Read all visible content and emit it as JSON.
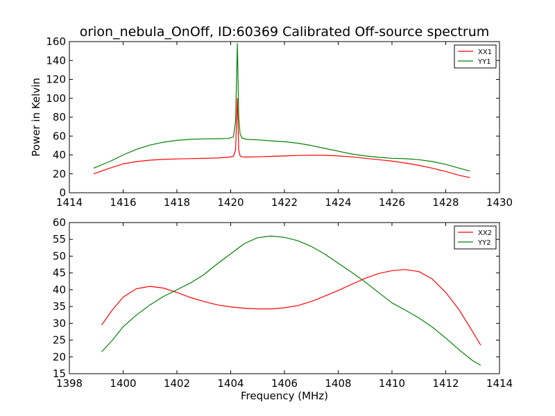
{
  "chart_data": [
    {
      "type": "line",
      "title": "orion_nebula_OnOff, ID:60369 Calibrated Off-source spectrum",
      "xlabel": "",
      "ylabel": "Power in Kelvin",
      "xlim": [
        1414,
        1430
      ],
      "ylim": [
        0,
        160
      ],
      "xticks": [
        1414,
        1416,
        1418,
        1420,
        1422,
        1424,
        1426,
        1428,
        1430
      ],
      "yticks": [
        0,
        20,
        40,
        60,
        80,
        100,
        120,
        140,
        160
      ],
      "grid": false,
      "legend_position": "top-right",
      "series": [
        {
          "name": "XX1",
          "color": "#ff0000",
          "x": [
            1414.9,
            1415.5,
            1416.0,
            1416.5,
            1417.0,
            1417.5,
            1418.0,
            1418.5,
            1419.0,
            1419.5,
            1419.9,
            1420.1,
            1420.18,
            1420.25,
            1420.3,
            1420.35,
            1420.42,
            1420.6,
            1421.0,
            1421.5,
            1422.0,
            1422.5,
            1423.0,
            1423.5,
            1424.0,
            1424.5,
            1425.0,
            1425.5,
            1426.0,
            1426.5,
            1427.0,
            1427.5,
            1428.0,
            1428.5,
            1428.9
          ],
          "y": [
            20,
            26,
            30.5,
            33,
            34.5,
            35.3,
            35.8,
            36.1,
            36.4,
            36.8,
            37.5,
            38.5,
            45,
            100,
            45,
            39,
            38,
            37.8,
            38,
            38.5,
            39,
            39.5,
            39.7,
            39.6,
            39,
            38,
            36.5,
            35,
            33.5,
            31.5,
            29,
            26,
            22.5,
            18.5,
            16
          ]
        },
        {
          "name": "YY1",
          "color": "#008000",
          "x": [
            1414.9,
            1415.5,
            1416.0,
            1416.5,
            1417.0,
            1417.5,
            1418.0,
            1418.5,
            1419.0,
            1419.5,
            1419.9,
            1420.1,
            1420.18,
            1420.25,
            1420.3,
            1420.35,
            1420.42,
            1420.6,
            1421.0,
            1421.5,
            1422.0,
            1422.5,
            1423.0,
            1423.5,
            1424.0,
            1424.5,
            1425.0,
            1425.5,
            1426.0,
            1426.5,
            1427.0,
            1427.5,
            1428.0,
            1428.5,
            1428.9
          ],
          "y": [
            26,
            33,
            40,
            46,
            50.5,
            53.5,
            55.5,
            56.5,
            57,
            57.2,
            57.5,
            59,
            75,
            158,
            80,
            62,
            58,
            56.5,
            56,
            55,
            54,
            52.5,
            50,
            47,
            44,
            41,
            39,
            37.5,
            36.5,
            36,
            35,
            33,
            30,
            26,
            23
          ]
        }
      ]
    },
    {
      "type": "line",
      "title": "",
      "xlabel": "Frequency (MHz)",
      "ylabel": "",
      "xlim": [
        1398,
        1414
      ],
      "ylim": [
        15,
        60
      ],
      "xticks": [
        1398,
        1400,
        1402,
        1404,
        1406,
        1408,
        1410,
        1412,
        1414
      ],
      "yticks": [
        15,
        20,
        25,
        30,
        35,
        40,
        45,
        50,
        55,
        60
      ],
      "grid": false,
      "legend_position": "top-right",
      "series": [
        {
          "name": "XX2",
          "color": "#ff0000",
          "x": [
            1399.2,
            1399.6,
            1400.0,
            1400.5,
            1401.0,
            1401.5,
            1402.0,
            1402.5,
            1403.0,
            1403.5,
            1404.0,
            1404.5,
            1405.0,
            1405.5,
            1406.0,
            1406.5,
            1407.0,
            1407.5,
            1408.0,
            1408.5,
            1409.0,
            1409.5,
            1410.0,
            1410.5,
            1411.0,
            1411.5,
            1412.0,
            1412.5,
            1413.0,
            1413.3
          ],
          "y": [
            29.5,
            34,
            37.8,
            40.3,
            41,
            40.5,
            39.2,
            37.7,
            36.5,
            35.5,
            34.9,
            34.5,
            34.3,
            34.3,
            34.6,
            35.3,
            36.5,
            38.1,
            39.8,
            41.6,
            43.4,
            44.8,
            45.7,
            46,
            45.4,
            43.2,
            39.2,
            34,
            27.5,
            23.5
          ]
        },
        {
          "name": "YY2",
          "color": "#008000",
          "x": [
            1399.2,
            1399.6,
            1400.0,
            1400.5,
            1401.0,
            1401.5,
            1402.0,
            1402.5,
            1403.0,
            1403.5,
            1404.0,
            1404.5,
            1405.0,
            1405.5,
            1406.0,
            1406.5,
            1407.0,
            1407.5,
            1408.0,
            1408.5,
            1409.0,
            1409.5,
            1410.0,
            1410.5,
            1411.0,
            1411.5,
            1412.0,
            1412.5,
            1413.0,
            1413.3
          ],
          "y": [
            21.5,
            25,
            29,
            32.5,
            35.5,
            38,
            40,
            42,
            44.5,
            47.7,
            50.7,
            53.7,
            55.5,
            56,
            55.6,
            54.6,
            52.9,
            50.6,
            47.9,
            45.2,
            42.3,
            39.2,
            36.1,
            33.9,
            31.6,
            28.9,
            25.6,
            22.1,
            18.9,
            17.5
          ]
        }
      ]
    }
  ]
}
